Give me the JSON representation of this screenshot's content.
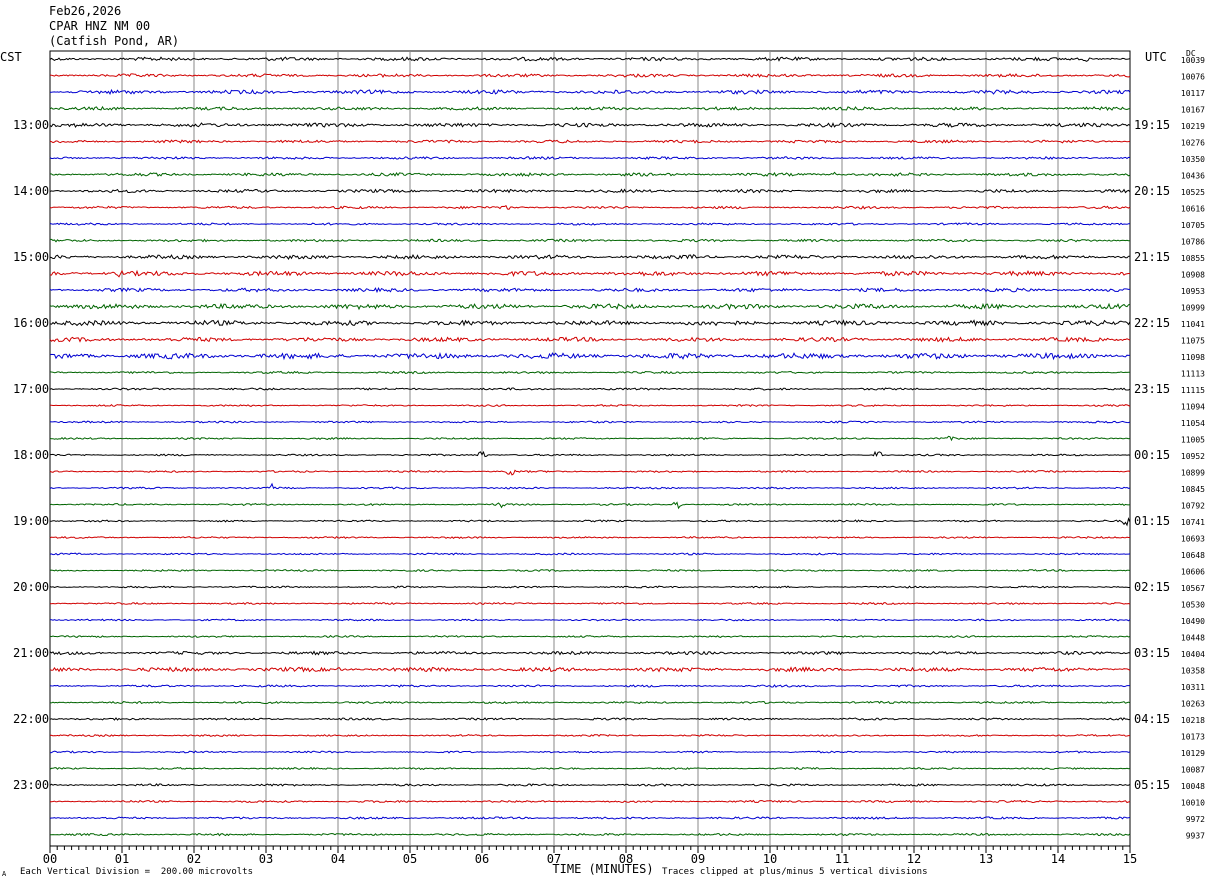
{
  "header": {
    "date": "Feb26,2026",
    "station": "CPAR HNZ NM 00",
    "location": "(Catfish Pond, AR)"
  },
  "left_tz": "CST",
  "right_tz": "UTC",
  "dc_label": "DC",
  "footer": {
    "scale_note": "Each Vertical Division =  200.00 microvolts",
    "clip_note": "Traces clipped at plus/minus 5 vertical divisions",
    "corner_mark": "A"
  },
  "colors": {
    "cycle": [
      "#000000",
      "#d00000",
      "#0000d0",
      "#006400"
    ],
    "grid": "#888888"
  },
  "chart_data": {
    "type": "line",
    "title": "",
    "xlabel": "TIME (MINUTES)",
    "ylabel": "",
    "xlim": [
      0,
      15
    ],
    "x_ticks": [
      "00",
      "01",
      "02",
      "03",
      "04",
      "05",
      "06",
      "07",
      "08",
      "09",
      "10",
      "11",
      "12",
      "13",
      "14",
      "15"
    ],
    "grid": true,
    "traces_per_hour": 4,
    "left_hour_labels": [
      "13:00",
      "14:00",
      "15:00",
      "16:00",
      "17:00",
      "18:00",
      "19:00",
      "20:00",
      "21:00",
      "22:00",
      "23:00"
    ],
    "right_hour_labels": [
      "19:15",
      "20:15",
      "21:15",
      "22:15",
      "23:15",
      "00:15",
      "01:15",
      "02:15",
      "03:15",
      "04:15",
      "05:15"
    ],
    "first_labeled_row": 4,
    "dc_offsets": [
      10039,
      10076,
      10117,
      10167,
      10219,
      10276,
      10350,
      10436,
      10525,
      10616,
      10705,
      10786,
      10855,
      10908,
      10953,
      10999,
      11041,
      11075,
      11098,
      11113,
      11115,
      11094,
      11054,
      11005,
      10952,
      10899,
      10845,
      10792,
      10741,
      10693,
      10648,
      10606,
      10567,
      10530,
      10490,
      10448,
      10404,
      10358,
      10311,
      10263,
      10218,
      10173,
      10129,
      10087,
      10048,
      10010,
      9972,
      9937
    ],
    "noise_level": [
      1.0,
      0.9,
      1.1,
      0.9,
      1.1,
      0.8,
      0.7,
      0.9,
      0.9,
      0.7,
      0.6,
      0.7,
      1.1,
      1.3,
      1.0,
      1.4,
      1.4,
      1.2,
      1.6,
      0.6,
      0.6,
      0.5,
      0.5,
      0.5,
      0.5,
      0.5,
      0.5,
      0.5,
      0.5,
      0.5,
      0.5,
      0.5,
      0.5,
      0.5,
      0.5,
      0.5,
      0.9,
      1.2,
      0.6,
      0.6,
      0.6,
      0.5,
      0.5,
      0.5,
      0.6,
      0.6,
      0.6,
      0.6
    ],
    "events": [
      {
        "trace": 0,
        "minute": 14.4,
        "amplitude": 3
      },
      {
        "trace": 7,
        "minute": 10.9,
        "amplitude": 3
      },
      {
        "trace": 9,
        "minute": 6.35,
        "amplitude": 3
      },
      {
        "trace": 12,
        "minute": 8.95,
        "amplitude": 3
      },
      {
        "trace": 13,
        "minute": 0.95,
        "amplitude": 4
      },
      {
        "trace": 23,
        "minute": 12.5,
        "amplitude": 4
      },
      {
        "trace": 24,
        "minute": 6.0,
        "amplitude": 6
      },
      {
        "trace": 24,
        "minute": 11.5,
        "amplitude": 7
      },
      {
        "trace": 25,
        "minute": 6.4,
        "amplitude": 6
      },
      {
        "trace": 26,
        "minute": 3.1,
        "amplitude": 6
      },
      {
        "trace": 27,
        "minute": 8.7,
        "amplitude": 6
      },
      {
        "trace": 27,
        "minute": 6.25,
        "amplitude": 4
      },
      {
        "trace": 28,
        "minute": 14.95,
        "amplitude": 5
      },
      {
        "trace": 37,
        "minute": 4.0,
        "amplitude": 3
      }
    ]
  }
}
